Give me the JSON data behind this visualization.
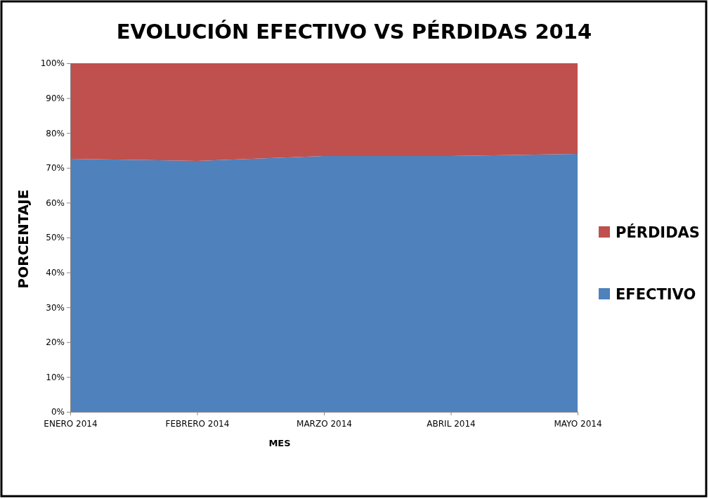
{
  "chart_data": {
    "type": "area",
    "stacked": true,
    "title": "EVOLUCIÓN EFECTIVO VS PÉRDIDAS 2014",
    "xlabel": "MES",
    "ylabel": "PORCENTAJE",
    "categories": [
      "ENERO 2014",
      "FEBRERO 2014",
      "MARZO 2014",
      "ABRIL 2014",
      "MAYO 2014"
    ],
    "series": [
      {
        "name": "EFECTIVO",
        "color": "#4f81bd",
        "values": [
          72.6,
          72.0,
          73.4,
          73.4,
          74.0
        ]
      },
      {
        "name": "PÉRDIDAS",
        "color": "#c0504d",
        "values": [
          27.4,
          28.0,
          26.6,
          26.6,
          26.0
        ]
      }
    ],
    "ylim": [
      0,
      100
    ],
    "yticks": [
      {
        "value": 0,
        "label": "0%"
      },
      {
        "value": 10,
        "label": "10%"
      },
      {
        "value": 20,
        "label": "20%"
      },
      {
        "value": 30,
        "label": "30%"
      },
      {
        "value": 40,
        "label": "40%"
      },
      {
        "value": 50,
        "label": "50%"
      },
      {
        "value": 60,
        "label": "60%"
      },
      {
        "value": 70,
        "label": "70%"
      },
      {
        "value": 80,
        "label": "80%"
      },
      {
        "value": 90,
        "label": "90%"
      },
      {
        "value": 100,
        "label": "100%"
      }
    ],
    "legend": "right"
  }
}
